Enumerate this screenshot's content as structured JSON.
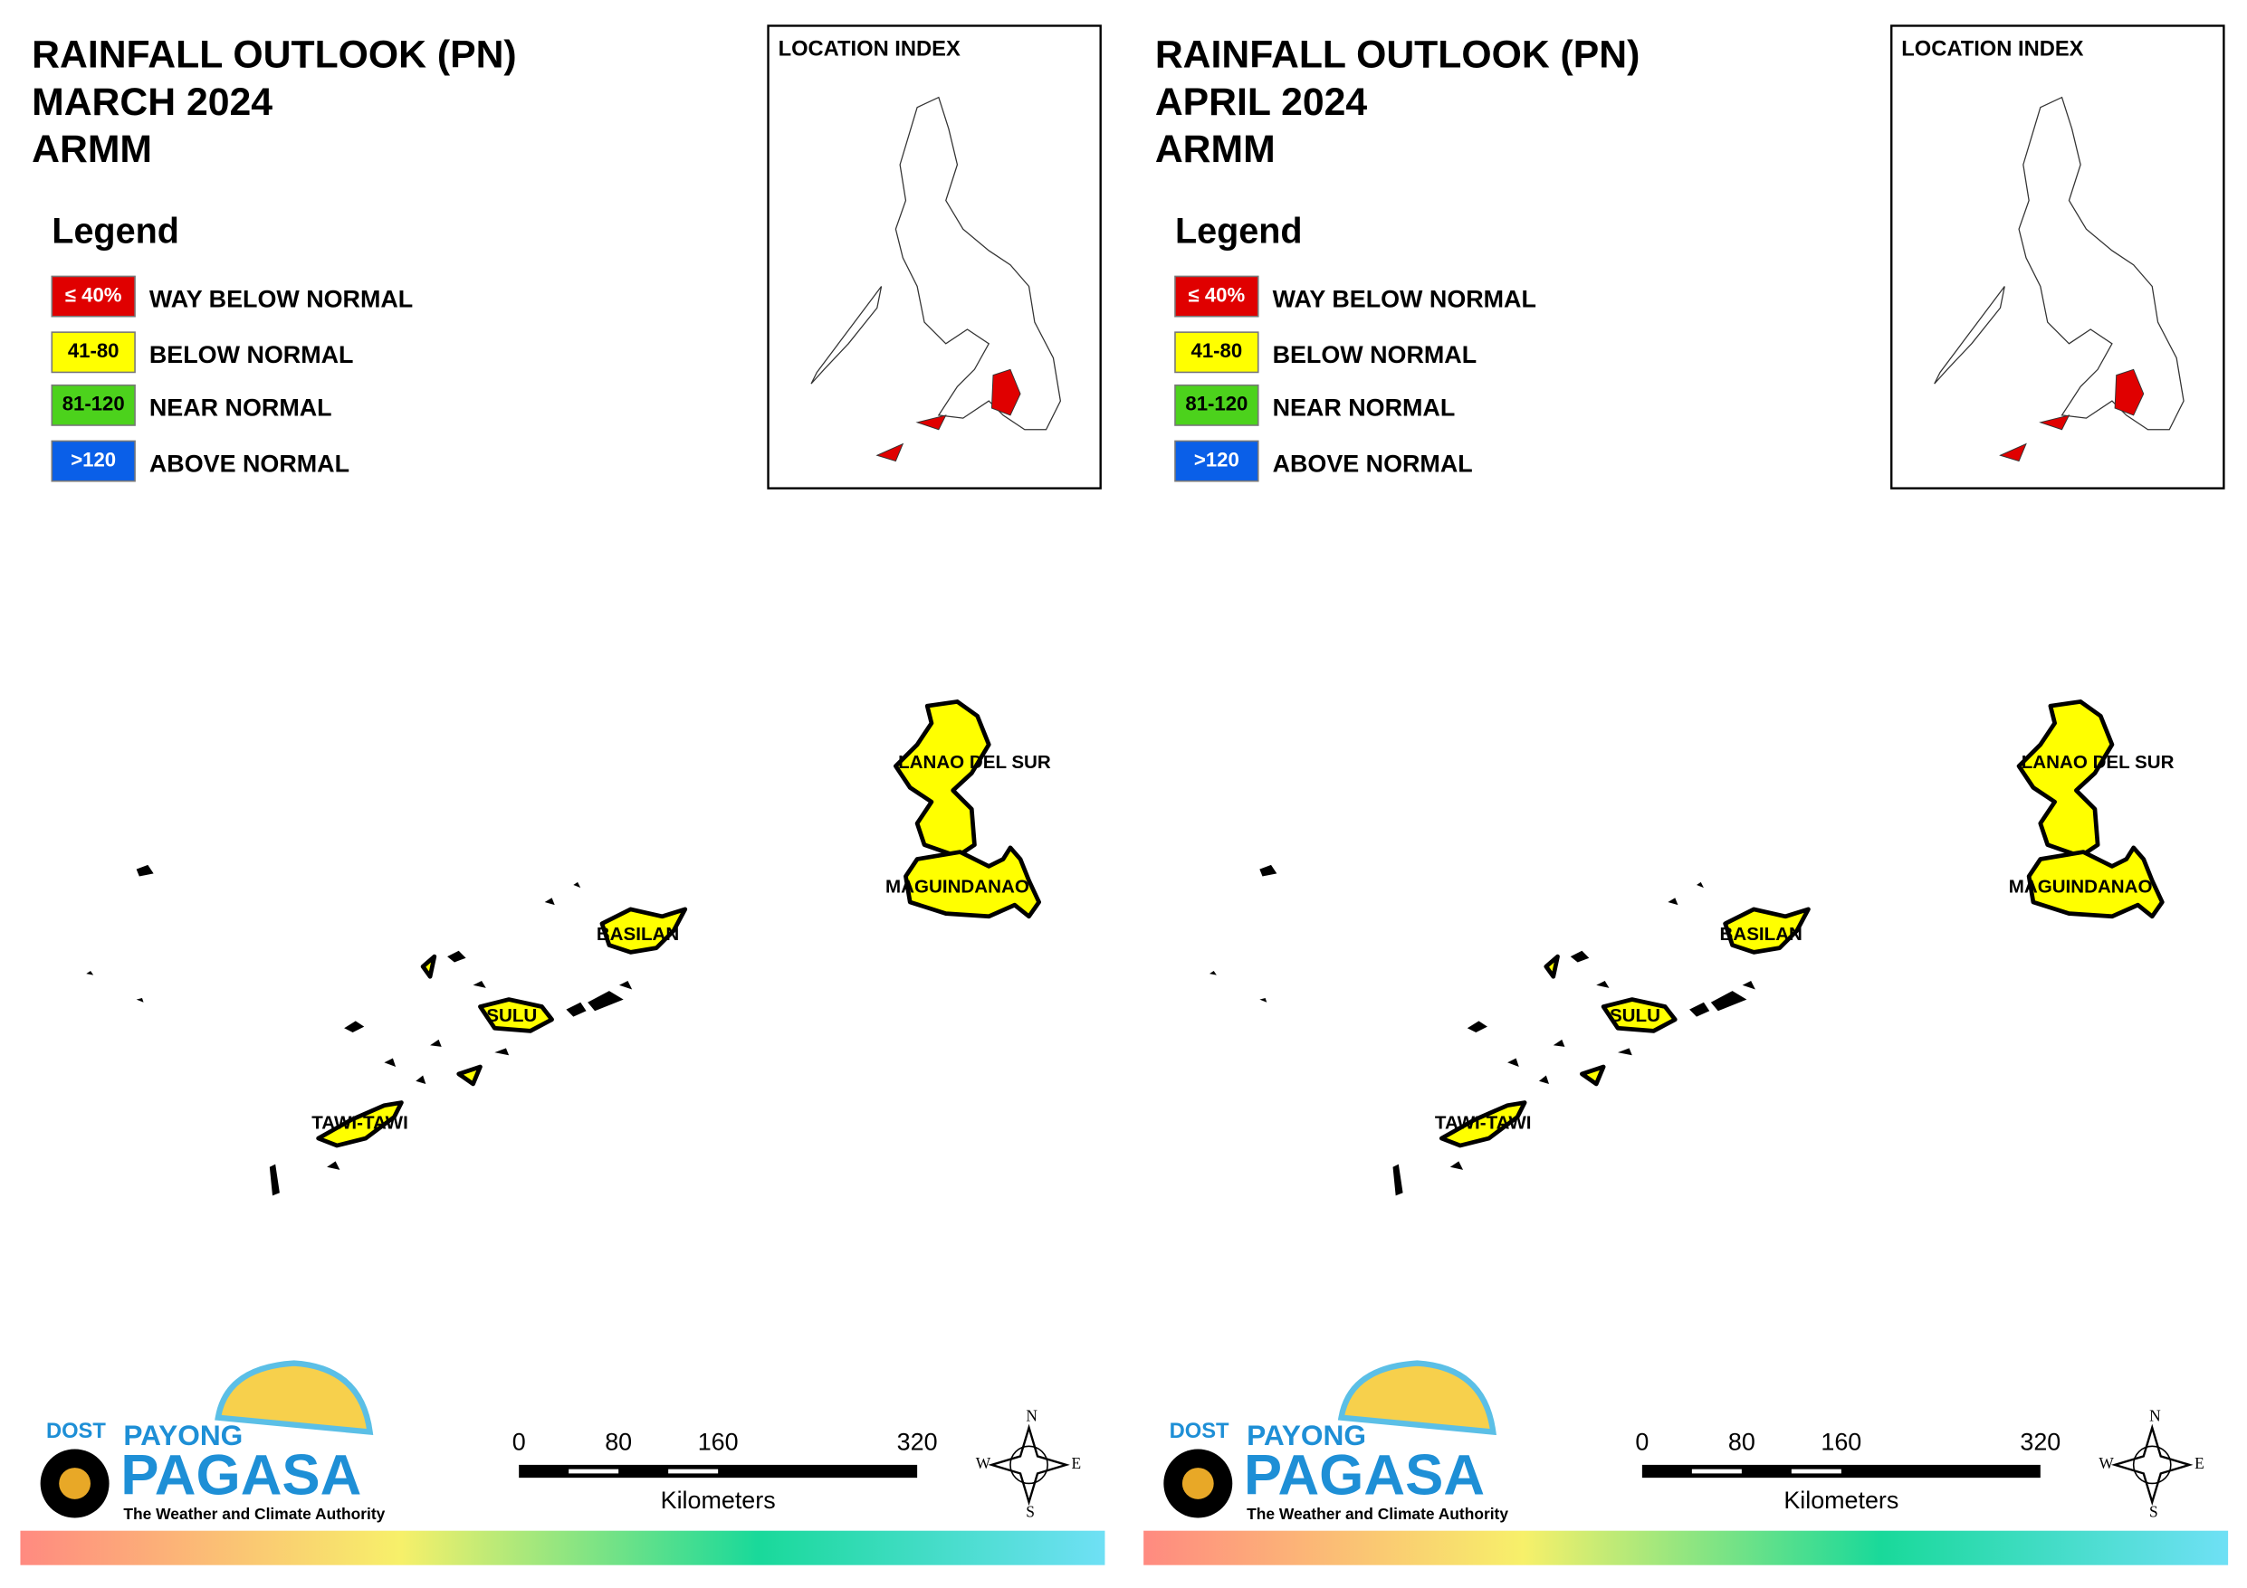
{
  "panels": [
    {
      "title": [
        "RAINFALL OUTLOOK (PN)",
        "MARCH 2024",
        "ARMM"
      ],
      "legend": {
        "title": "Legend",
        "items": [
          {
            "swatch": "≤ 40%",
            "label": "WAY BELOW NORMAL",
            "color": "#e00000"
          },
          {
            "swatch": "41-80",
            "label": "BELOW NORMAL",
            "color": "#ffff00"
          },
          {
            "swatch": "81-120",
            "label": "NEAR NORMAL",
            "color": "#4cd21c"
          },
          {
            "swatch": ">120",
            "label": "ABOVE NORMAL",
            "color": "#0a5fe8"
          }
        ]
      },
      "location_index": "LOCATION INDEX",
      "places": [
        "LANAO DEL SUR",
        "MAGUINDANAO",
        "BASILAN",
        "SULU",
        "TAWI-TAWI"
      ],
      "scale": {
        "ticks": [
          0,
          80,
          160,
          320
        ],
        "unit": "Kilometers"
      },
      "compass": [
        "N",
        "E",
        "S",
        "W"
      ],
      "logo": {
        "agency": "DOST",
        "brand": [
          "PAYONG",
          "PAGASA"
        ],
        "tagline": "The Weather and Climate Authority"
      }
    },
    {
      "title": [
        "RAINFALL OUTLOOK (PN)",
        "APRIL 2024",
        "ARMM"
      ],
      "legend": {
        "title": "Legend",
        "items": [
          {
            "swatch": "≤ 40%",
            "label": "WAY BELOW NORMAL",
            "color": "#e00000"
          },
          {
            "swatch": "41-80",
            "label": "BELOW NORMAL",
            "color": "#ffff00"
          },
          {
            "swatch": "81-120",
            "label": "NEAR NORMAL",
            "color": "#4cd21c"
          },
          {
            "swatch": ">120",
            "label": "ABOVE NORMAL",
            "color": "#0a5fe8"
          }
        ]
      },
      "location_index": "LOCATION INDEX",
      "places": [
        "LANAO DEL SUR",
        "MAGUINDANAO",
        "BASILAN",
        "SULU",
        "TAWI-TAWI"
      ],
      "scale": {
        "ticks": [
          0,
          80,
          160,
          320
        ],
        "unit": "Kilometers"
      },
      "compass": [
        "N",
        "E",
        "S",
        "W"
      ],
      "logo": {
        "agency": "DOST",
        "brand": [
          "PAYONG",
          "PAGASA"
        ],
        "tagline": "The Weather and Climate Authority"
      }
    }
  ]
}
